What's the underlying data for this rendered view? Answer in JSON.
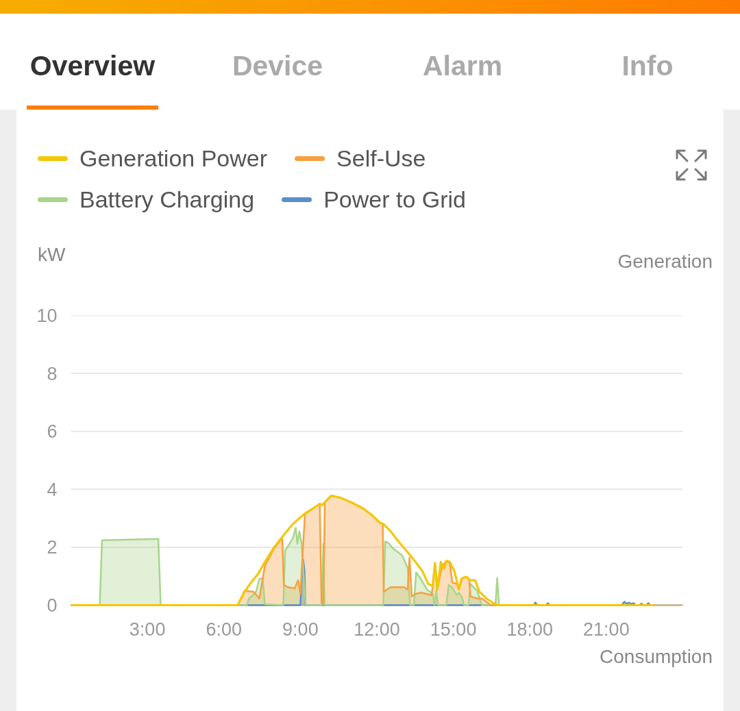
{
  "chart_data": [
    {
      "type": "other",
      "annotations": [
        "Overview",
        "Device",
        "Alarm",
        "Info"
      ]
    },
    {
      "type": "line",
      "title": "Generation",
      "ylabel": "kW",
      "annotations": [
        "Consumption"
      ],
      "xlim": [
        0,
        24
      ],
      "xticks": [
        {
          "value": 3,
          "label": "3:00"
        },
        {
          "value": 6,
          "label": "6:00"
        },
        {
          "value": 9,
          "label": "9:00"
        },
        {
          "value": 12,
          "label": "12:00"
        },
        {
          "value": 15,
          "label": "15:00"
        },
        {
          "value": 18,
          "label": "18:00"
        },
        {
          "value": 21,
          "label": "21:00"
        }
      ],
      "ylim": [
        0,
        10
      ],
      "yticks": [
        0,
        2,
        4,
        6,
        8,
        10
      ],
      "grid": "y",
      "legend": "top",
      "line_style": "solid",
      "series": [
        {
          "name": "Generation Power",
          "color": "#f3c808",
          "x": [
            0,
            6.54,
            6.81,
            7.03,
            7.35,
            7.66,
            7.97,
            8.29,
            8.69,
            9.14,
            9.5,
            9.76,
            9.85,
            10.03,
            10.21,
            10.57,
            11.02,
            11.46,
            11.82,
            12.09,
            12.27,
            12.54,
            12.81,
            13.16,
            13.52,
            13.79,
            14.01,
            14.19,
            14.28,
            14.37,
            14.51,
            14.64,
            14.73,
            14.86,
            15.04,
            15.22,
            15.31,
            15.49,
            15.67,
            15.85,
            16.03,
            16.3,
            16.56,
            16.74,
            22.87
          ],
          "values": [
            0,
            0,
            0.46,
            0.74,
            1.09,
            1.57,
            2.0,
            2.36,
            2.79,
            3.14,
            3.34,
            3.5,
            3.45,
            3.62,
            3.78,
            3.71,
            3.54,
            3.34,
            3.1,
            2.87,
            2.79,
            2.55,
            2.24,
            1.88,
            1.49,
            1.17,
            0.74,
            0.66,
            1.45,
            0.54,
            1.49,
            1.25,
            1.53,
            1.49,
            1.17,
            0.54,
            0.9,
            0.98,
            0.86,
            0.86,
            0.46,
            0.23,
            0.07,
            0,
            0
          ]
        },
        {
          "name": "Self-Use",
          "type": "area",
          "color": "#f7a03f",
          "x": [
            0,
            6.54,
            6.81,
            7.17,
            7.39,
            7.61,
            7.97,
            8.29,
            8.35,
            8.51,
            8.78,
            8.91,
            9.0,
            9.18,
            9.5,
            9.76,
            9.83,
            9.9,
            9.96,
            10.21,
            10.57,
            11.02,
            11.46,
            11.82,
            12.09,
            12.23,
            12.27,
            12.54,
            13.07,
            13.21,
            13.28,
            13.37,
            13.52,
            13.74,
            14.15,
            14.28,
            14.37,
            14.55,
            14.73,
            14.86,
            14.96,
            15.13,
            15.22,
            15.35,
            15.53,
            15.62,
            15.67,
            15.8,
            15.98,
            16.12,
            16.47,
            22.87
          ],
          "values": [
            0,
            0,
            0.5,
            0.46,
            0.23,
            1.37,
            1.96,
            2.32,
            0.7,
            0.62,
            0.58,
            0.86,
            0.39,
            3.14,
            3.34,
            3.5,
            0.07,
            0.07,
            3.54,
            3.78,
            3.71,
            3.54,
            3.34,
            3.1,
            2.87,
            2.79,
            0.46,
            0.62,
            0.62,
            0.54,
            1.64,
            0.3,
            0.39,
            0.43,
            0.35,
            1.45,
            0.54,
            1.33,
            1.53,
            1.45,
            0.78,
            0.74,
            0.54,
            0.94,
            0.98,
            0.9,
            0.31,
            0.26,
            0.23,
            0.23,
            0,
            0
          ]
        },
        {
          "name": "Battery Charging",
          "type": "area",
          "color": "#a8d58a",
          "x": [
            0,
            1.13,
            1.22,
            3.43,
            3.52,
            6.9,
            6.99,
            7.26,
            7.39,
            7.52,
            7.61,
            8.33,
            8.4,
            8.69,
            8.82,
            8.88,
            8.96,
            9.05,
            9.18,
            9.22,
            9.85,
            9.9,
            9.95,
            12.25,
            12.33,
            12.45,
            12.63,
            12.99,
            13.21,
            13.3,
            13.45,
            13.54,
            13.7,
            13.97,
            14.19,
            14.26,
            14.33,
            14.4,
            14.72,
            14.82,
            14.95,
            15.13,
            15.22,
            15.35,
            15.42,
            15.6,
            15.67,
            15.8,
            15.94,
            16.12,
            16.65,
            16.72,
            16.79,
            22.87
          ],
          "values": [
            0,
            0,
            2.24,
            2.29,
            0,
            0,
            0.23,
            0.46,
            0.9,
            0.94,
            0.03,
            0,
            1.88,
            2.28,
            2.67,
            2.12,
            2.55,
            2.12,
            0.31,
            0,
            0,
            2.12,
            0,
            0,
            2.2,
            2.15,
            1.96,
            1.72,
            1.29,
            0,
            0,
            1.13,
            0.94,
            0.54,
            0.39,
            0,
            0.5,
            0,
            0,
            0.7,
            0.62,
            0.35,
            0.43,
            0.26,
            0,
            0,
            0.74,
            0.62,
            0.5,
            0,
            0,
            0.94,
            0,
            0
          ]
        },
        {
          "name": "Power to Grid",
          "type": "area",
          "color": "#5b8fca",
          "x": [
            0,
            9.0,
            9.06,
            9.11,
            9.16,
            9.2,
            18.15,
            18.22,
            18.3,
            18.64,
            18.71,
            18.78,
            21.6,
            21.71,
            21.8,
            21.89,
            21.98,
            22.07,
            22.15,
            22.3,
            22.38,
            22.46,
            22.57,
            22.65,
            22.72,
            22.87
          ],
          "values": [
            0,
            0,
            1.1,
            1.57,
            1.2,
            0,
            0,
            0.09,
            0,
            0,
            0.07,
            0,
            0,
            0.12,
            0.05,
            0.09,
            0.04,
            0.07,
            0,
            0,
            0.05,
            0,
            0,
            0.07,
            0,
            0
          ]
        }
      ]
    }
  ]
}
